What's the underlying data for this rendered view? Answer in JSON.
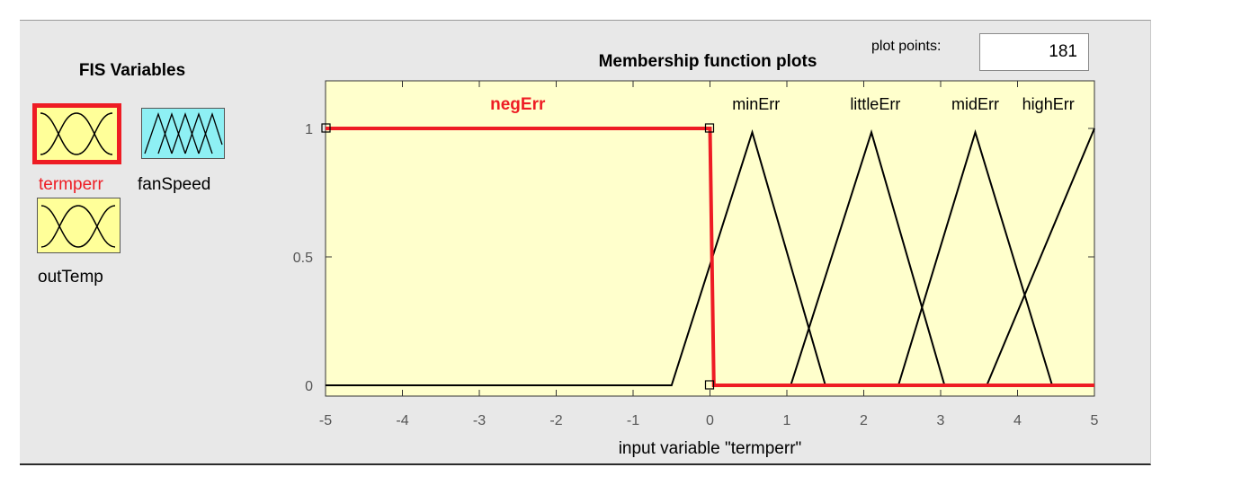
{
  "fis_variables": {
    "title": "FIS Variables",
    "items": [
      {
        "label": "termperr",
        "kind": "input",
        "selected": true,
        "icon": "membership-triangles-icon"
      },
      {
        "label": "fanSpeed",
        "kind": "output",
        "selected": false,
        "icon": "membership-triangles-icon"
      },
      {
        "label": "outTemp",
        "kind": "input",
        "selected": false,
        "icon": "membership-triangles-icon"
      }
    ]
  },
  "plot": {
    "title": "Membership function plots",
    "plot_points_label": "plot points:",
    "plot_points_value": "181",
    "xlabel": "input variable \"termperr\""
  },
  "colors": {
    "selected": "#ee1c24",
    "input_box": "#ffff99",
    "output_box": "#8ef0f4",
    "plot_bg": "#ffffcc"
  },
  "chart_data": {
    "type": "line",
    "xlim": [
      -5,
      5
    ],
    "ylim": [
      0,
      1.2
    ],
    "xticks": [
      "-5",
      "-4",
      "-3",
      "-2",
      "-1",
      "0",
      "1",
      "2",
      "3",
      "4",
      "5"
    ],
    "yticks": [
      "0",
      "0.5",
      "1"
    ],
    "grid": false,
    "selected_series": "negErr",
    "series": [
      {
        "name": "negErr",
        "x": [
          -5,
          0,
          0.05,
          5
        ],
        "y": [
          1,
          1,
          0,
          0
        ]
      },
      {
        "name": "minErr",
        "x": [
          -5,
          -0.5,
          0.55,
          1.5,
          5
        ],
        "y": [
          0,
          0,
          0.985,
          0,
          0
        ]
      },
      {
        "name": "littleErr",
        "x": [
          1.05,
          2.1,
          3.05
        ],
        "y": [
          0,
          0.985,
          0
        ]
      },
      {
        "name": "midErr",
        "x": [
          2.45,
          3.45,
          4.45
        ],
        "y": [
          0,
          0.985,
          0
        ]
      },
      {
        "name": "highErr",
        "x": [
          3.6,
          5
        ],
        "y": [
          0,
          1
        ]
      }
    ],
    "series_labels": [
      {
        "name": "negErr",
        "x": -2.5
      },
      {
        "name": "minErr",
        "x": 0.6
      },
      {
        "name": "littleErr",
        "x": 2.15
      },
      {
        "name": "midErr",
        "x": 3.45
      },
      {
        "name": "highErr",
        "x": 4.4
      }
    ]
  }
}
